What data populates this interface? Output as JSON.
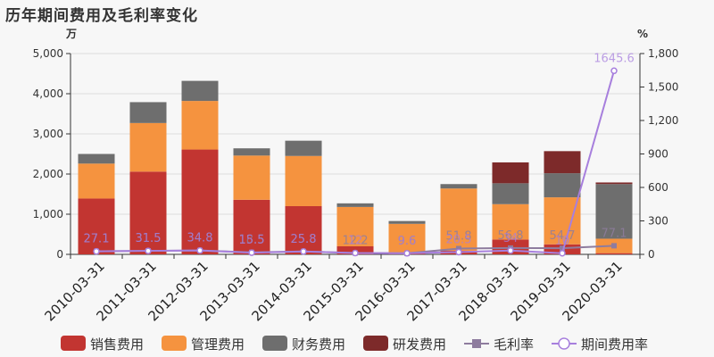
{
  "title": "历年期间费用及毛利率变化",
  "chart_data": {
    "type": "bar",
    "stacked": true,
    "title": "历年期间费用及毛利率变化",
    "left_axis_unit": "万",
    "right_axis_unit": "%",
    "left_ylim": [
      0,
      5000
    ],
    "left_ticks": [
      "0",
      "1,000",
      "2,000",
      "3,000",
      "4,000",
      "5,000"
    ],
    "right_ylim": [
      0,
      1800
    ],
    "right_ticks": [
      "0",
      "300",
      "600",
      "900",
      "1,200",
      "1,500",
      "1,800"
    ],
    "categories": [
      "2010-03-31",
      "2011-03-31",
      "2012-03-31",
      "2013-03-31",
      "2014-03-31",
      "2015-03-31",
      "2016-03-31",
      "2017-03-31",
      "2018-03-31",
      "2019-03-31",
      "2020-03-31"
    ],
    "series": [
      {
        "name": "销售费用",
        "type": "bar",
        "axis": "left",
        "color": "#c23531",
        "values": [
          1390,
          2060,
          2610,
          1360,
          1200,
          200,
          30,
          90,
          370,
          250,
          30
        ]
      },
      {
        "name": "管理费用",
        "type": "bar",
        "axis": "left",
        "color": "#f5933f",
        "values": [
          870,
          1210,
          1210,
          1100,
          1250,
          980,
          730,
          1550,
          880,
          1170,
          360
        ]
      },
      {
        "name": "财务费用",
        "type": "bar",
        "axis": "left",
        "color": "#6e6e6e",
        "values": [
          240,
          520,
          500,
          180,
          380,
          90,
          70,
          110,
          520,
          600,
          1360
        ]
      },
      {
        "name": "研发费用",
        "type": "bar",
        "axis": "left",
        "color": "#7d2a2a",
        "values": [
          0,
          0,
          0,
          0,
          0,
          0,
          0,
          0,
          520,
          550,
          40
        ]
      },
      {
        "name": "毛利率",
        "type": "line",
        "axis": "right",
        "color": "#8e7c9e",
        "marker": "square",
        "values": [
          27.1,
          31.5,
          34.8,
          18.5,
          25.8,
          12.2,
          9.6,
          51.8,
          56.8,
          54.7,
          77.1
        ],
        "labels": [
          "27.1",
          "31.5",
          "34.8",
          "18.5",
          "25.8",
          "12.2",
          "9.6",
          "51.8",
          "56.8",
          "54.7",
          "77.1"
        ]
      },
      {
        "name": "期间费用率",
        "type": "line",
        "axis": "right",
        "color": "#a77fdd",
        "marker": "circle",
        "values": [
          27.1,
          31.5,
          34.8,
          15.5,
          25.8,
          12.2,
          9.6,
          20.5,
          34.0,
          10.0,
          1645.6
        ],
        "labels": [
          "27.1",
          "31.5",
          "34.8",
          "15.5",
          "25.8",
          "12",
          "9.6",
          "20.5",
          "34",
          "10",
          "1645.6"
        ]
      }
    ],
    "legend_position": "bottom"
  }
}
